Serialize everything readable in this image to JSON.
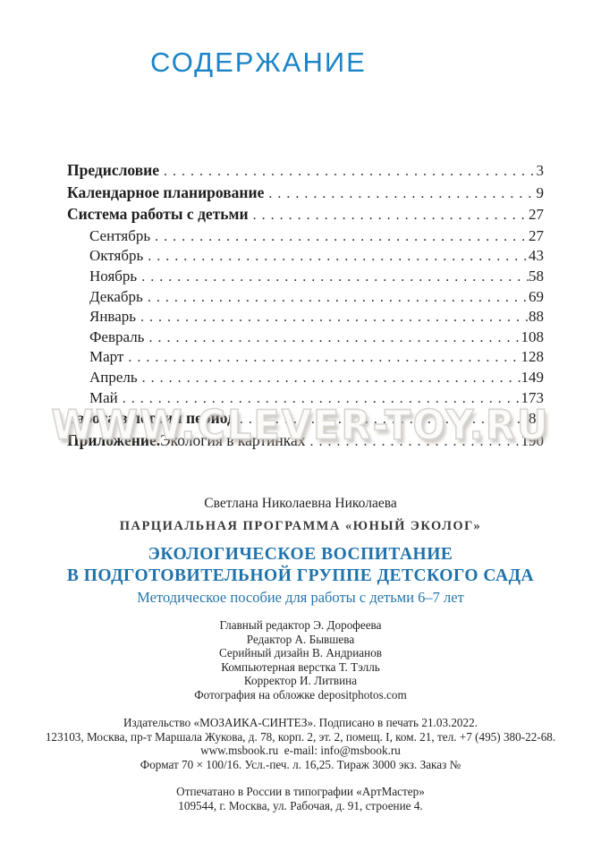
{
  "page_title": "СОДЕРЖАНИЕ",
  "watermark_text": "WWW.CLEVER-TOY.RU",
  "colors": {
    "title_blue": "#1b84c7",
    "heading_blue": "#1f72ab",
    "body_text": "#1e1e1e",
    "watermark_gray": "#d7d3d0"
  },
  "toc": {
    "entries": [
      {
        "label": "Предисловие",
        "page": "3",
        "bold": true,
        "indent": false
      },
      {
        "label": "Календарное планирование",
        "page": "9",
        "bold": true,
        "indent": false
      },
      {
        "label": "Система работы с детьми",
        "page": "27",
        "bold": true,
        "indent": false
      },
      {
        "label": "Сентябрь",
        "page": "27",
        "bold": false,
        "indent": true
      },
      {
        "label": "Октябрь",
        "page": "43",
        "bold": false,
        "indent": true
      },
      {
        "label": "Ноябрь",
        "page": "58",
        "bold": false,
        "indent": true
      },
      {
        "label": "Декабрь",
        "page": "69",
        "bold": false,
        "indent": true
      },
      {
        "label": "Январь",
        "page": "88",
        "bold": false,
        "indent": true
      },
      {
        "label": "Февраль",
        "page": "108",
        "bold": false,
        "indent": true
      },
      {
        "label": "Март",
        "page": "128",
        "bold": false,
        "indent": true
      },
      {
        "label": "Апрель",
        "page": "149",
        "bold": false,
        "indent": true
      },
      {
        "label": "Май",
        "page": "173",
        "bold": false,
        "indent": true
      },
      {
        "label": "Работа в летний период",
        "page": "189",
        "bold": true,
        "indent": false
      },
      {
        "label": "Приложение.",
        "suffix": " Экология в картинках",
        "page": "190",
        "bold": true,
        "indent": false
      }
    ]
  },
  "colophon": {
    "author": "Светлана Николаевна Николаева",
    "program": "ПАРЦИАЛЬНАЯ ПРОГРАММА «ЮНЫЙ ЭКОЛОГ»",
    "title_line1": "ЭКОЛОГИЧЕСКОЕ ВОСПИТАНИЕ",
    "title_line2": "В ПОДГОТОВИТЕЛЬНОЙ ГРУППЕ ДЕТСКОГО САДА",
    "subtitle": "Методическое пособие для работы с детьми 6–7 лет",
    "credits": [
      "Главный редактор Э. Дорофеева",
      "Редактор А. Бывшева",
      "Серийный дизайн В. Андрианов",
      "Компьютерная верстка Т. Тэлль",
      "Корректор И. Литвина",
      "Фотография на обложке depositphotos.com"
    ],
    "publisher": [
      "Издательство «МОЗАИКА-СИНТЕЗ». Подписано в печать 21.03.2022.",
      "123103, Москва, пр-т Маршала Жукова, д. 78, корп. 2, эт. 2, помещ. I, ком. 21, тел. +7 (495) 380-22-68.",
      "www.msbook.ru  e-mail: info@msbook.ru",
      "Формат 70 × 100/16. Усл.-печ. л. 16,25. Тираж 3000 экз. Заказ №"
    ],
    "printing": [
      "Отпечатано в России в типографии «АртМастер»",
      "109544, г. Москва, ул. Рабочая, д. 91, строение 4."
    ]
  }
}
